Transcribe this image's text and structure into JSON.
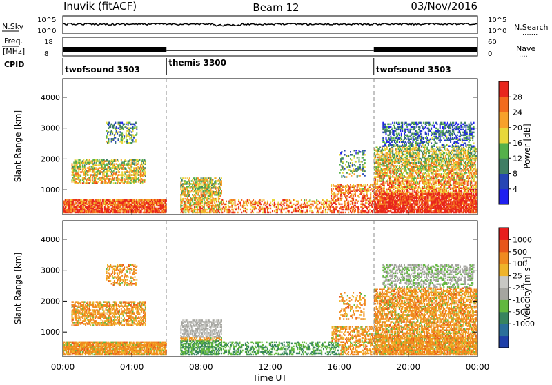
{
  "header": {
    "station": "Inuvik (fitACF)",
    "beam": "Beam 12",
    "date": "03/Nov/2016"
  },
  "small_panels": {
    "nsky": {
      "label": "N.Sky",
      "tick_hi": "10^5",
      "tick_lo": "10^0",
      "right_label": "N.Search",
      "right_dots": "......."
    },
    "freq": {
      "label": "Freq.",
      "unit": "[MHz]",
      "tick_hi": "18",
      "tick_lo": "8",
      "right_label": "Nave",
      "right_dots": "....",
      "right_tick_hi": "60",
      "right_tick_lo": "0"
    },
    "cpid": {
      "label": "CPID",
      "programs": [
        {
          "name": "twofsound 3503",
          "start_hour": 0,
          "end_hour": 6
        },
        {
          "name": "themis 3300",
          "start_hour": 6,
          "end_hour": 18
        },
        {
          "name": "twofsound 3503",
          "start_hour": 18,
          "end_hour": 24
        }
      ]
    }
  },
  "chart_data": [
    {
      "type": "heatmap",
      "name": "power",
      "ylabel": "Slant Range [km]",
      "yticks": [
        "1000",
        "2000",
        "3000",
        "4000"
      ],
      "ylim": [
        200,
        4600
      ],
      "xlim": [
        0,
        24
      ],
      "colorbar": {
        "label": "Power [dB]",
        "ticks": [
          "4",
          "8",
          "12",
          "16",
          "20",
          "24",
          "28"
        ],
        "colors": [
          "#1f1ff0",
          "#2646b4",
          "#3f7e64",
          "#55b04a",
          "#e8d83a",
          "#f7a12a",
          "#f26b1d",
          "#e8261d"
        ]
      }
    },
    {
      "type": "heatmap",
      "name": "velocity",
      "ylabel": "Slant Range [km]",
      "yticks": [
        "1000",
        "2000",
        "3000",
        "4000"
      ],
      "ylim": [
        200,
        4600
      ],
      "xlim": [
        0,
        24
      ],
      "xlabel": "Time UT",
      "xticks": [
        "00:00",
        "04:00",
        "08:00",
        "12:00",
        "16:00",
        "20:00",
        "00:00"
      ],
      "colorbar": {
        "label": "Velocity [m s⁻¹]",
        "ticks": [
          "1000",
          "500",
          "100",
          "25",
          "-25",
          "-100",
          "-500",
          "-1000"
        ],
        "colors": [
          "#1e3fa8",
          "#2b6f9a",
          "#37845e",
          "#62b83e",
          "#a5a5a0",
          "#c8c8c4",
          "#efb42a",
          "#f08a1f",
          "#e8561a",
          "#e81d1d"
        ]
      }
    }
  ]
}
